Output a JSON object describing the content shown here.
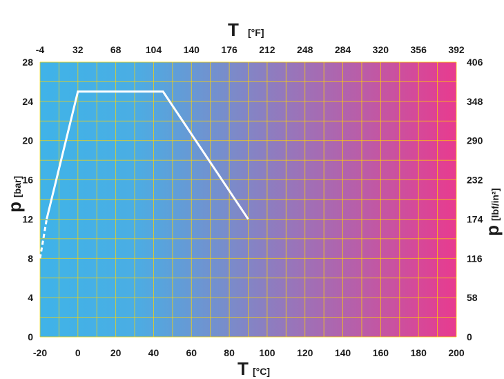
{
  "chart_data": {
    "type": "line",
    "title": "",
    "x_bottom": {
      "title": "T",
      "unit": "[°C]",
      "min": -20,
      "max": 200,
      "ticks": [
        "-20",
        "0",
        "20",
        "40",
        "60",
        "80",
        "100",
        "120",
        "140",
        "160",
        "180",
        "200"
      ]
    },
    "x_top": {
      "title": "T",
      "unit": "[°F]",
      "ticks": [
        "-4",
        "32",
        "68",
        "104",
        "140",
        "176",
        "212",
        "248",
        "284",
        "320",
        "356",
        "392"
      ]
    },
    "y_left": {
      "title": "p",
      "unit": "[bar]",
      "min": 0,
      "max": 28,
      "ticks": [
        "0",
        "4",
        "8",
        "12",
        "16",
        "20",
        "24",
        "28"
      ]
    },
    "y_right": {
      "title": "p",
      "unit": "[lbf/in²]",
      "ticks": [
        "0",
        "58",
        "116",
        "174",
        "232",
        "290",
        "348",
        "406"
      ]
    },
    "grid": true,
    "background_gradient": [
      "#3fb3e8",
      "#e83b8f"
    ],
    "grid_color": "#ffd400",
    "series": [
      {
        "x": [
          -20,
          -16.5
        ],
        "y": [
          8,
          12
        ],
        "style": "dashed",
        "color": "#ffffff"
      },
      {
        "x": [
          -16.5,
          0,
          45,
          90
        ],
        "y": [
          12,
          25,
          25,
          12
        ],
        "style": "solid",
        "color": "#ffffff"
      }
    ]
  }
}
